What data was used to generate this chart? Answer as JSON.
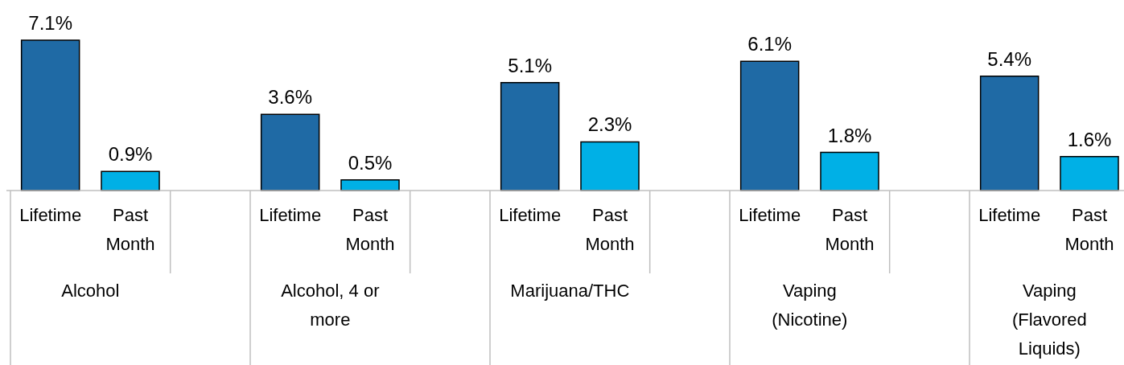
{
  "chart_data": {
    "type": "bar",
    "categories": [
      "Alcohol",
      "Alcohol, 4 or more",
      "Marijuana/THC",
      "Vaping (Nicotine)",
      "Vaping (Flavored Liquids)"
    ],
    "series": [
      {
        "name": "Lifetime",
        "color": "#1f6aa5",
        "values": [
          7.1,
          3.6,
          5.1,
          6.1,
          5.4
        ],
        "value_labels": [
          "7.1%",
          "3.6%",
          "5.1%",
          "6.1%",
          "5.4%"
        ]
      },
      {
        "name": "Past Month",
        "color": "#00b0e6",
        "values": [
          0.9,
          0.5,
          2.3,
          1.8,
          1.6
        ],
        "value_labels": [
          "0.9%",
          "0.5%",
          "2.3%",
          "1.8%",
          "1.6%"
        ]
      }
    ]
  }
}
